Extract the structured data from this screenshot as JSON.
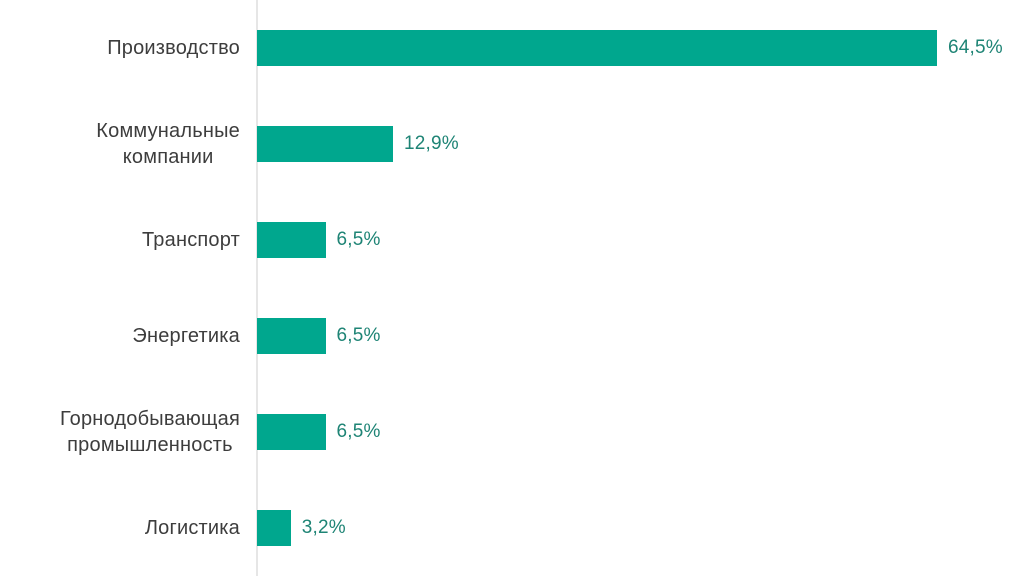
{
  "chart": {
    "background_color": "#ffffff",
    "bar_color": "#00a78e",
    "value_label_color": "#1e8475",
    "category_label_color": "#3d3d3d",
    "axis_line_color": "#e6e6e6"
  },
  "chart_data": {
    "type": "bar",
    "orientation": "horizontal",
    "title": "",
    "xlabel": "",
    "ylabel": "",
    "legend": false,
    "grid": false,
    "axis": "single vertical baseline on left, no ticks, no scale labels",
    "xlim": [
      0,
      68
    ],
    "categories": [
      "Производство",
      "Коммунальные\nкомпании",
      "Транспорт",
      "Энергетика",
      "Горнодобывающая\nпромышленность",
      "Логистика"
    ],
    "values": [
      64.5,
      12.9,
      6.5,
      6.5,
      6.5,
      3.2
    ],
    "value_labels": [
      "64,5%",
      "12,9%",
      "6,5%",
      "6,5%",
      "6,5%",
      "3,2%"
    ]
  }
}
